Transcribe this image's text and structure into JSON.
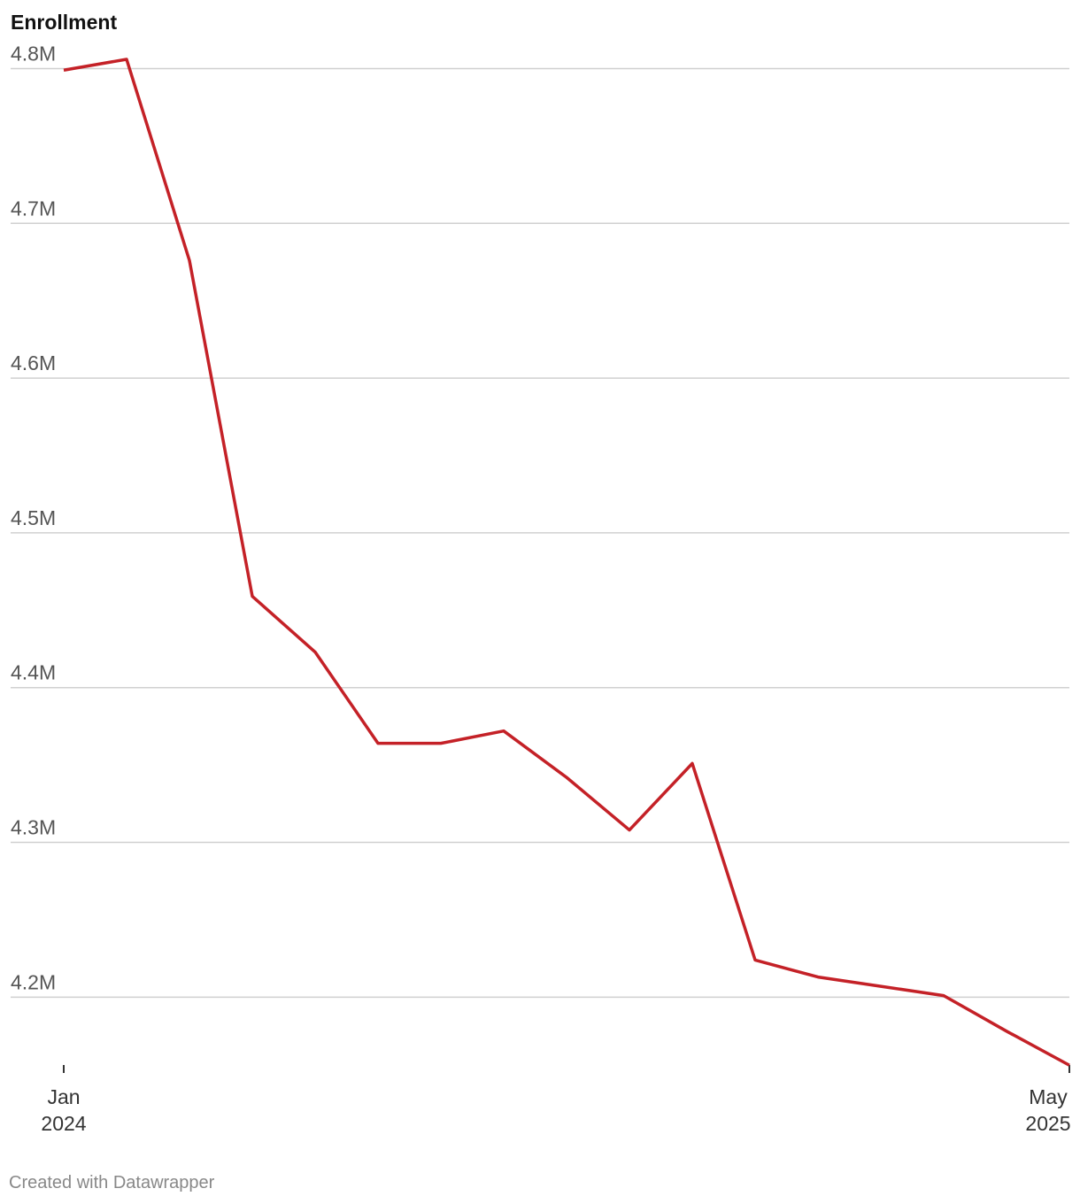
{
  "chart_data": {
    "type": "line",
    "title": "Enrollment",
    "categories": [
      "Jan 2024",
      null,
      null,
      null,
      null,
      null,
      null,
      null,
      null,
      null,
      null,
      null,
      null,
      null,
      null,
      null,
      "May 2025"
    ],
    "series": [
      {
        "name": "Enrollment",
        "color": "#c42127",
        "values": [
          4.799,
          4.806,
          4.676,
          4.459,
          4.423,
          4.364,
          4.364,
          4.372,
          4.342,
          4.308,
          4.351,
          4.224,
          4.213,
          4.207,
          4.201,
          4.178,
          4.156
        ]
      }
    ],
    "ylim": [
      4.155,
      4.806
    ],
    "yticks": [
      {
        "value": 4.2,
        "label": "4.2M"
      },
      {
        "value": 4.3,
        "label": "4.3M"
      },
      {
        "value": 4.4,
        "label": "4.4M"
      },
      {
        "value": 4.5,
        "label": "4.5M"
      },
      {
        "value": 4.6,
        "label": "4.6M"
      },
      {
        "value": 4.7,
        "label": "4.7M"
      },
      {
        "value": 4.8,
        "label": "4.8M"
      }
    ],
    "grid": true,
    "credit": "Created with Datawrapper"
  }
}
